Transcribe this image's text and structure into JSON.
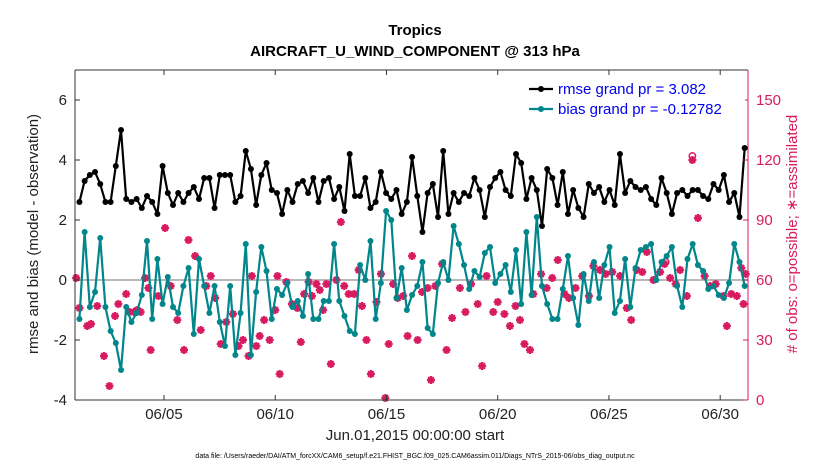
{
  "chart_data": {
    "type": "line",
    "title": "Tropics",
    "subtitle": "AIRCRAFT_U_WIND_COMPONENT @ 313 hPa",
    "xlabel": "Jun.01,2015 00:00:00 start",
    "ylabel": "rmse and bias (model - observation)",
    "y2label": "# of obs: o=possible; ∗=assimilated",
    "xlim": [
      1.0,
      31.25
    ],
    "ylim": [
      -4,
      7
    ],
    "y2lim": [
      0,
      165
    ],
    "xticks": [
      5,
      10,
      15,
      20,
      25,
      30
    ],
    "xtick_labels": [
      "06/05",
      "06/10",
      "06/15",
      "06/20",
      "06/25",
      "06/30"
    ],
    "yticks": [
      -4,
      -2,
      0,
      2,
      4,
      6
    ],
    "ytick_labels": [
      "-4",
      "-2",
      "0",
      "2",
      "4",
      "6"
    ],
    "y2ticks": [
      0,
      30,
      60,
      90,
      120,
      150
    ],
    "y2tick_labels": [
      "0",
      "30",
      "60",
      "90",
      "120",
      "150"
    ],
    "zero_line": 0,
    "legend_position": "top-right",
    "series": [
      {
        "name": "rmse",
        "legend": "rmse grand pr = 3.082",
        "color": "#000000",
        "axis": "left",
        "values": [
          2.6,
          3.3,
          3.5,
          3.6,
          3.2,
          2.6,
          2.6,
          3.8,
          5.0,
          2.7,
          2.6,
          2.7,
          2.4,
          2.8,
          2.6,
          2.2,
          3.8,
          2.9,
          2.5,
          2.9,
          2.6,
          2.9,
          3.1,
          2.7,
          3.4,
          3.4,
          2.4,
          3.5,
          3.5,
          3.5,
          2.6,
          2.8,
          4.3,
          3.7,
          2.5,
          3.5,
          3.9,
          3.0,
          2.9,
          2.2,
          3.0,
          2.6,
          3.2,
          3.3,
          2.9,
          3.4,
          2.6,
          3.3,
          3.4,
          2.7,
          3.1,
          2.3,
          4.2,
          2.8,
          2.8,
          3.4,
          2.4,
          2.6,
          3.6,
          2.9,
          2.7,
          3.0,
          2.2,
          2.6,
          4.1,
          2.8,
          1.6,
          2.9,
          3.2,
          2.1,
          4.3,
          2.2,
          2.9,
          2.6,
          2.9,
          2.8,
          3.4,
          3.0,
          2.1,
          3.1,
          3.4,
          3.6,
          3.0,
          2.8,
          4.2,
          3.9,
          2.7,
          3.4,
          3.0,
          1.8,
          3.7,
          3.4,
          2.5,
          3.6,
          2.2,
          3.0,
          2.4,
          2.1,
          3.2,
          2.9,
          3.1,
          2.6,
          3.0,
          2.5,
          4.2,
          2.9,
          3.3,
          3.1,
          3.0,
          3.1,
          2.7,
          2.5,
          3.4,
          2.9,
          2.2,
          2.9,
          3.0,
          2.8,
          3.0,
          3.0,
          2.8,
          2.7,
          3.2,
          3.0,
          3.5,
          2.6,
          2.9,
          2.1,
          4.4
        ]
      },
      {
        "name": "bias",
        "legend": "bias grand pr = -0.12782",
        "color": "#00868b",
        "axis": "left",
        "values": [
          -1.3,
          1.6,
          -0.9,
          -0.4,
          1.4,
          -0.9,
          -1.7,
          -2.1,
          -3.0,
          -0.9,
          -1.4,
          -1.1,
          -0.5,
          1.3,
          -1.3,
          0.7,
          -0.8,
          0.1,
          -0.9,
          -1.1,
          -0.2,
          0.4,
          -1.8,
          0.7,
          -0.2,
          -1.1,
          -0.2,
          -1.4,
          -2.2,
          -0.2,
          -2.5,
          -1.1,
          1.2,
          -2.5,
          -0.4,
          1.1,
          0.3,
          -1.3,
          -0.3,
          -0.5,
          -0.1,
          -0.9,
          -0.7,
          -1.2,
          0.2,
          -1.3,
          -1.3,
          -0.7,
          -0.7,
          1.2,
          -0.7,
          -1.2,
          -1.7,
          -1.8,
          0.5,
          0.0,
          1.3,
          -1.3,
          -0.1,
          2.3,
          2.0,
          -0.6,
          0.4,
          -1.0,
          -0.5,
          -0.2,
          0.6,
          -1.6,
          -1.8,
          -0.1,
          0.6,
          0.0,
          1.8,
          1.2,
          0.5,
          -0.3,
          0.3,
          0.1,
          0.9,
          1.1,
          -0.1,
          0.2,
          0.5,
          -0.4,
          1.0,
          -0.8,
          1.6,
          -0.5,
          2.1,
          -0.2,
          -0.8,
          -1.3,
          -1.3,
          -0.3,
          0.8,
          -0.6,
          -1.5,
          0.2,
          -0.7,
          0.6,
          -0.6,
          0.5,
          1.1,
          -1.1,
          -0.7,
          0.7,
          -0.9,
          0.4,
          1.0,
          1.1,
          1.2,
          0.0,
          0.6,
          0.8,
          1.1,
          -0.2,
          -0.9,
          0.7,
          1.2,
          0.5,
          0.3,
          -0.3,
          -0.2,
          -0.5,
          -0.6,
          -0.1,
          1.2,
          0.6,
          -0.2
        ]
      },
      {
        "name": "obs_assimilated",
        "marker": "∗",
        "color": "#d81b60",
        "axis": "right",
        "points": [
          [
            1.05,
            61
          ],
          [
            1.2,
            46
          ],
          [
            1.55,
            37
          ],
          [
            1.72,
            38
          ],
          [
            2.0,
            47
          ],
          [
            2.3,
            22
          ],
          [
            2.55,
            7
          ],
          [
            2.8,
            42
          ],
          [
            2.95,
            48
          ],
          [
            3.3,
            53
          ],
          [
            3.45,
            44
          ],
          [
            3.65,
            44
          ],
          [
            3.8,
            45
          ],
          [
            3.95,
            44
          ],
          [
            4.15,
            61
          ],
          [
            4.3,
            56
          ],
          [
            4.4,
            25
          ],
          [
            4.75,
            52
          ],
          [
            5.05,
            86
          ],
          [
            5.3,
            57
          ],
          [
            5.6,
            40
          ],
          [
            5.9,
            25
          ],
          [
            6.1,
            80
          ],
          [
            6.4,
            72
          ],
          [
            6.65,
            35
          ],
          [
            6.9,
            57
          ],
          [
            7.1,
            62
          ],
          [
            7.3,
            51
          ],
          [
            7.55,
            28
          ],
          [
            7.8,
            39
          ],
          [
            8.1,
            43
          ],
          [
            8.35,
            27
          ],
          [
            8.55,
            30
          ],
          [
            8.8,
            22
          ],
          [
            8.95,
            62
          ],
          [
            9.15,
            27
          ],
          [
            9.3,
            32
          ],
          [
            9.5,
            40
          ],
          [
            9.75,
            30
          ],
          [
            10.0,
            45
          ],
          [
            10.1,
            62
          ],
          [
            10.2,
            13
          ],
          [
            10.5,
            59
          ],
          [
            10.75,
            48
          ],
          [
            11.0,
            46
          ],
          [
            11.15,
            29
          ],
          [
            11.3,
            53
          ],
          [
            11.5,
            59
          ],
          [
            11.65,
            52
          ],
          [
            11.85,
            58
          ],
          [
            12.0,
            55
          ],
          [
            12.15,
            45
          ],
          [
            12.3,
            58
          ],
          [
            12.5,
            18
          ],
          [
            12.75,
            60
          ],
          [
            12.95,
            89
          ],
          [
            13.1,
            57
          ],
          [
            13.3,
            53
          ],
          [
            13.55,
            53
          ],
          [
            13.75,
            65
          ],
          [
            13.9,
            47
          ],
          [
            14.1,
            30
          ],
          [
            14.3,
            13
          ],
          [
            14.55,
            49
          ],
          [
            14.75,
            63
          ],
          [
            14.95,
            1
          ],
          [
            15.1,
            28
          ],
          [
            15.3,
            58
          ],
          [
            15.5,
            51
          ],
          [
            15.75,
            52
          ],
          [
            15.95,
            32
          ],
          [
            16.15,
            72
          ],
          [
            16.4,
            30
          ],
          [
            16.6,
            54
          ],
          [
            16.85,
            56
          ],
          [
            17.0,
            10
          ],
          [
            17.2,
            57
          ],
          [
            17.5,
            68
          ],
          [
            17.7,
            25
          ],
          [
            17.95,
            41
          ],
          [
            18.3,
            56
          ],
          [
            18.55,
            44
          ],
          [
            18.8,
            58
          ],
          [
            19.1,
            48
          ],
          [
            19.3,
            17
          ],
          [
            19.5,
            62
          ],
          [
            19.8,
            44
          ],
          [
            20.0,
            49
          ],
          [
            20.3,
            43
          ],
          [
            20.55,
            37
          ],
          [
            20.8,
            47
          ],
          [
            21.0,
            40
          ],
          [
            21.2,
            28
          ],
          [
            21.45,
            25
          ],
          [
            21.6,
            53
          ],
          [
            21.95,
            63
          ],
          [
            22.2,
            56
          ],
          [
            22.45,
            61
          ],
          [
            22.7,
            70
          ],
          [
            23.0,
            53
          ],
          [
            23.2,
            51
          ],
          [
            23.5,
            56
          ],
          [
            23.8,
            62
          ],
          [
            24.1,
            52
          ],
          [
            24.3,
            67
          ],
          [
            24.6,
            65
          ],
          [
            24.85,
            63
          ],
          [
            25.15,
            64
          ],
          [
            25.5,
            62
          ],
          [
            25.8,
            46
          ],
          [
            26.0,
            40
          ],
          [
            26.25,
            65
          ],
          [
            26.5,
            64
          ],
          [
            26.7,
            74
          ],
          [
            27.0,
            60
          ],
          [
            27.3,
            64
          ],
          [
            27.5,
            68
          ],
          [
            27.75,
            61
          ],
          [
            28.0,
            58
          ],
          [
            28.2,
            65
          ],
          [
            28.5,
            52
          ],
          [
            28.75,
            120
          ],
          [
            29.0,
            91
          ],
          [
            29.3,
            62
          ],
          [
            29.55,
            57
          ],
          [
            29.8,
            58
          ],
          [
            30.15,
            52
          ],
          [
            30.3,
            37
          ],
          [
            30.5,
            53
          ],
          [
            30.75,
            52
          ],
          [
            31.05,
            48
          ],
          [
            31.15,
            63
          ],
          [
            30.95,
            66
          ]
        ]
      },
      {
        "name": "obs_possible",
        "marker": "o",
        "color": "#d81b60",
        "axis": "right",
        "points": [
          [
            28.75,
            122
          ],
          [
            27.55,
            69
          ]
        ]
      }
    ]
  },
  "footer": {
    "data_file": "data file: /Users/raeder/DAI/ATM_forcXX/CAM6_setup/f.e21.FHIST_BGC.f09_025.CAM6assim.011/Diags_NTrS_2015-06/obs_diag_output.nc"
  }
}
